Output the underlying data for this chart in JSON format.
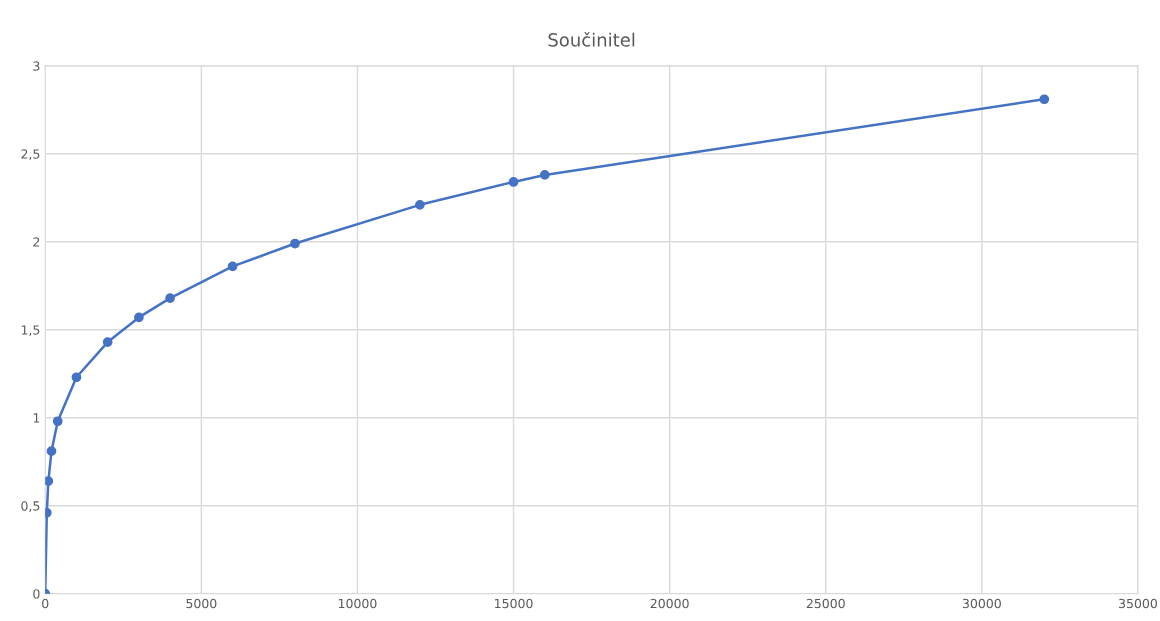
{
  "chart_data": {
    "type": "line",
    "title": "Součinitel",
    "x": [
      0,
      50,
      100,
      200,
      400,
      1000,
      2000,
      3000,
      4000,
      6000,
      8000,
      12000,
      15000,
      16000,
      32000
    ],
    "series": [
      {
        "color": "#4472c4",
        "values": [
          0,
          0.46,
          0.64,
          0.81,
          0.98,
          1.23,
          1.43,
          1.57,
          1.68,
          1.86,
          1.99,
          2.21,
          2.34,
          2.38,
          2.81
        ]
      }
    ],
    "xlim": [
      0,
      35000
    ],
    "xticks": [
      0,
      5000,
      10000,
      15000,
      20000,
      25000,
      30000,
      35000
    ],
    "ylim": [
      0,
      3
    ],
    "yticks": [
      0,
      {
        "value": 0.5,
        "label": "0,5"
      },
      1,
      {
        "value": 1.5,
        "label": "1,5"
      },
      2,
      {
        "value": 2.5,
        "label": "2,5"
      },
      3
    ],
    "grid": true,
    "marker": "circle",
    "line_style": "solid",
    "legend": false
  }
}
